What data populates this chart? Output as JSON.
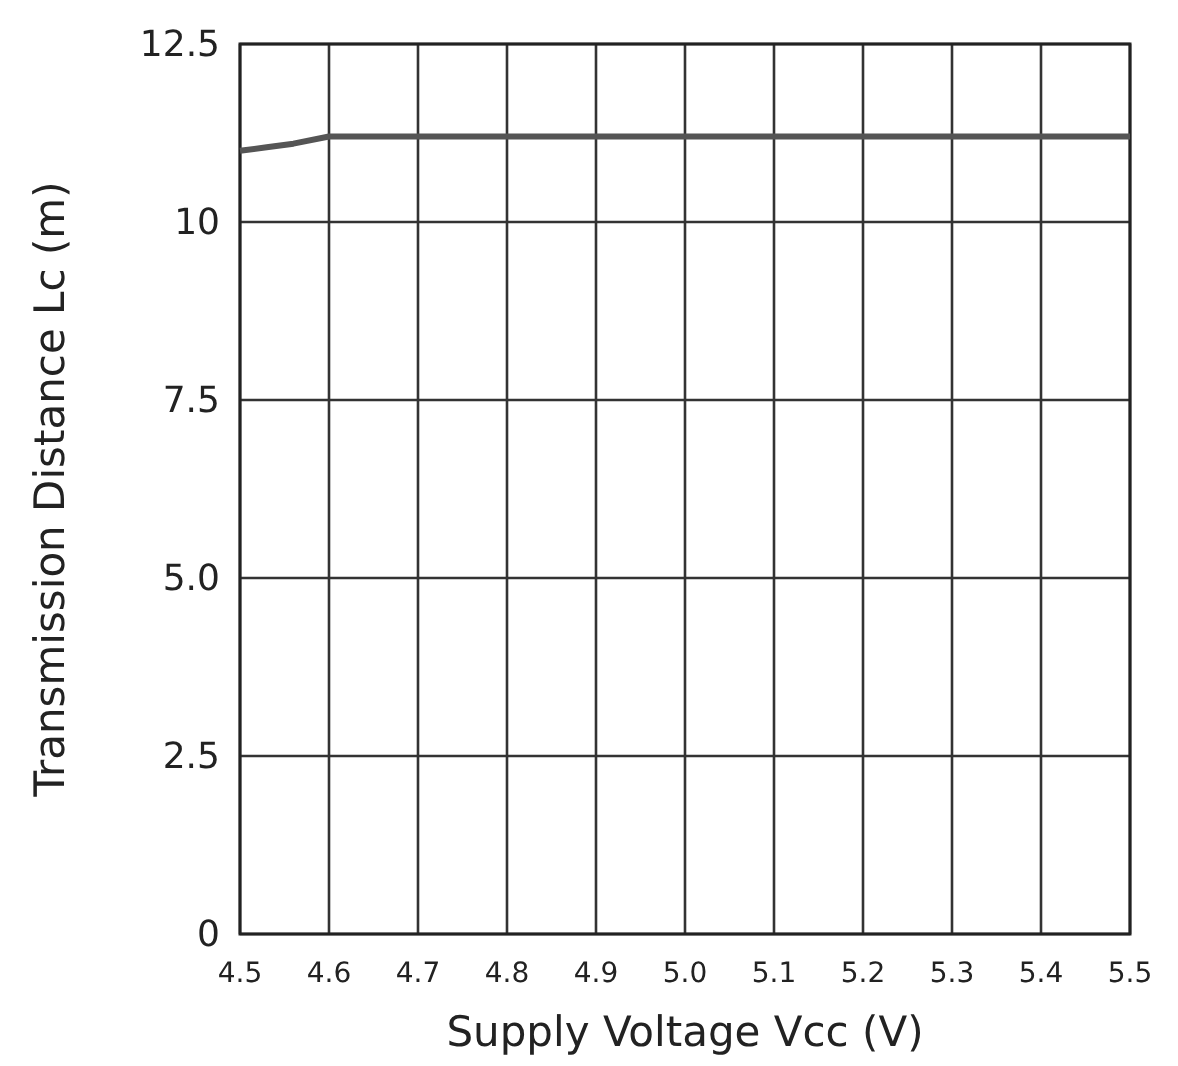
{
  "chart_data": {
    "type": "line",
    "xlabel": "Supply Voltage Vcc (V)",
    "ylabel": "Transmission Distance Lc (m)",
    "x": [
      4.5,
      4.53,
      4.56,
      4.6,
      4.7,
      4.8,
      4.9,
      5.0,
      5.1,
      5.2,
      5.3,
      5.4,
      5.5
    ],
    "series": [
      {
        "color": "#555555",
        "values": [
          11.0,
          11.05,
          11.1,
          11.2,
          11.2,
          11.2,
          11.2,
          11.2,
          11.2,
          11.2,
          11.2,
          11.2,
          11.2
        ]
      }
    ],
    "xlim": [
      4.5,
      5.5
    ],
    "ylim": [
      0,
      12.5
    ],
    "xticks": [
      4.5,
      4.6,
      4.7,
      4.8,
      4.9,
      {
        "value": 5.0,
        "label": "5.0"
      },
      5.1,
      5.2,
      5.3,
      5.4,
      5.5
    ],
    "yticks": [
      0,
      2.5,
      {
        "value": 5.0,
        "label": "5.0"
      },
      7.5,
      10,
      12.5
    ],
    "grid": true,
    "marker": "none",
    "line_style": "solid"
  }
}
